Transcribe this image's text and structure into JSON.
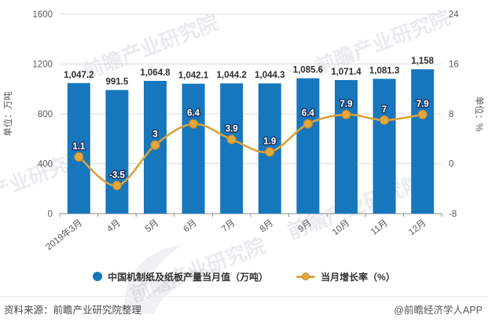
{
  "chart_data": {
    "type": "combo",
    "categories": [
      "2019年3月",
      "4月",
      "5月",
      "6月",
      "7月",
      "8月",
      "9月",
      "10月",
      "11月",
      "12月"
    ],
    "series": [
      {
        "name": "中国机制纸及纸板产量当月值（万吨）",
        "type": "bar",
        "axis": "left",
        "values": [
          1047.2,
          991.5,
          1064.8,
          1042.1,
          1044.2,
          1044.3,
          1085.6,
          1071.4,
          1081.3,
          1158
        ],
        "labels": [
          "1,047.2",
          "991.5",
          "1,064.8",
          "1,042.1",
          "1,044.2",
          "1,044.3",
          "1,085.6",
          "1,071.4",
          "1,081.3",
          "1,158"
        ]
      },
      {
        "name": "当月增长率（%）",
        "type": "line",
        "axis": "right",
        "values": [
          1.1,
          -3.5,
          3,
          6.4,
          3.9,
          1.9,
          6.4,
          7.9,
          7,
          7.9
        ],
        "labels": [
          "1.1",
          "-3.5",
          "3",
          "6.4",
          "3.9",
          "1.9",
          "6.4",
          "7.9",
          "7",
          "7.9"
        ]
      }
    ],
    "left_axis": {
      "name": "单位：万吨",
      "ticks": [
        0,
        400,
        800,
        1200,
        1600
      ],
      "range": [
        0,
        1600
      ]
    },
    "right_axis": {
      "name": "单位：%",
      "ticks": [
        -8,
        0,
        8,
        16,
        24
      ],
      "range": [
        -8,
        24
      ]
    },
    "grid": true,
    "legend_position": "bottom"
  },
  "legend": {
    "items": [
      {
        "label": "中国机制纸及纸板产量当月值（万吨）"
      },
      {
        "label": "当月增长率（%）"
      }
    ]
  },
  "footer": {
    "source": "资料来源：前瞻产业研究院整理",
    "credit": "@前瞻经济学人APP"
  },
  "watermark": {
    "text": "前瞻产业研究院"
  },
  "colors": {
    "bar": "#1677BD",
    "line": "#DBA33B",
    "marker_fill": "#E2A83F",
    "marker_stroke": "#C2882B",
    "line_label_fill": "#FFFFFF",
    "line_label_outline": "#1F3864",
    "bar_label": "#2E2E2E",
    "axis_text": "#595959",
    "grid_line": "#DCDCDC",
    "axis_line": "#8C8C8C",
    "watermark": "rgba(145,155,170,0.20)"
  }
}
